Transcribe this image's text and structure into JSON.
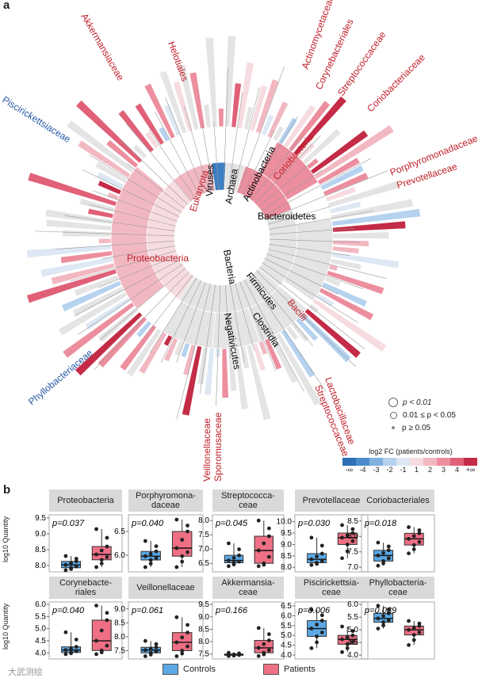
{
  "panel_a": {
    "letter": "a",
    "clade_labels": {
      "viruses": "Viruses",
      "archaea": "Archaea",
      "eukaryota": "Eukaryota",
      "actinobacteria": "Actinobacteria",
      "coriobacteria": "Coriobacteria",
      "bacteroidetes": "Bacteroidetes",
      "proteobacteria": "Proteobacteria",
      "bacteria": "Bacteria",
      "firmicutes": "Firmicutes",
      "negativicutes": "Negativicutes",
      "clostridia": "Clostridia",
      "bacilli": "Bacilli"
    },
    "family_labels": {
      "akkermansiaceae": "Akkermansiaceae",
      "helotiales": "Helotiales",
      "actinomycetaceae": "Actinomycetaceae",
      "corynebacteriales": "Corynebacteriales",
      "streptococcaceae_top": "Streptococcaceae",
      "coriobacteriaceae": "Coriobacteriaceae",
      "porphyromonadaceae": "Porphyromonadaceae",
      "prevotellaceae": "Prevotellaceae",
      "piscirickettsiaceae": "Piscirickettsiaceae",
      "phyllobacteriaceae": "Phyllobacteriaceae",
      "veillonellaceae": "Veillonellaceae",
      "sporomusaceae": "Sporomusaceae",
      "lactobacillaceae": "Lactobacillaceae",
      "streptococcaceae_bottom": "Streptococcaceae"
    },
    "pvalue_legend": [
      "p < 0.01",
      "0.01 ≤ p < 0.05",
      "p ≥ 0.05"
    ],
    "fc_legend": {
      "title": "log2 FC (patients/controls)",
      "ticks": [
        "-∞",
        "-4",
        "-3",
        "-2",
        "-1",
        "1",
        "2",
        "3",
        "4",
        "+∞"
      ],
      "colors": [
        "#2f6eb5",
        "#4d8ccc",
        "#7fb0e0",
        "#b5d2ef",
        "#dde8f4",
        "#f6dce0",
        "#f2b8c2",
        "#ec8e9e",
        "#e06078",
        "#c42b46"
      ]
    }
  },
  "panel_b": {
    "letter": "b",
    "y_axis_label": "log10 Quantity",
    "legend": {
      "controls": "Controls",
      "patients": "Patients",
      "controls_color": "#5aa9e6",
      "patients_color": "#ef6f84"
    },
    "watermark": "大武测绘"
  },
  "chart_data": [
    {
      "type": "box",
      "title": "Proteobacteria",
      "pvalue": "p=0.037",
      "yticks": [
        "8.0",
        "8.5",
        "9.0",
        "9.5"
      ],
      "ylim": [
        7.8,
        9.6
      ],
      "controls": {
        "min": 7.85,
        "q1": 7.93,
        "median": 8.02,
        "q3": 8.13,
        "max": 8.3
      },
      "patients": {
        "min": 7.95,
        "q1": 8.18,
        "median": 8.35,
        "q3": 8.6,
        "max": 9.15
      }
    },
    {
      "type": "box",
      "title": "Porphyromona-\ndaceae",
      "pvalue": "p=0.040",
      "yticks": [
        "6.0",
        "6.5"
      ],
      "ylim": [
        5.65,
        6.85
      ],
      "controls": {
        "min": 5.75,
        "q1": 5.9,
        "median": 5.98,
        "q3": 6.08,
        "max": 6.3
      },
      "patients": {
        "min": 5.75,
        "q1": 5.98,
        "median": 6.15,
        "q3": 6.5,
        "max": 6.75
      }
    },
    {
      "type": "box",
      "title": "Streptococca-\nceae",
      "pvalue": "p=0.045",
      "yticks": [
        "6.5",
        "7.0",
        "7.5",
        "8.0"
      ],
      "ylim": [
        6.2,
        8.2
      ],
      "controls": {
        "min": 6.4,
        "q1": 6.52,
        "median": 6.6,
        "q3": 6.78,
        "max": 7.2
      },
      "patients": {
        "min": 6.4,
        "q1": 6.5,
        "median": 6.95,
        "q3": 7.45,
        "max": 8.0
      }
    },
    {
      "type": "box",
      "title": "Prevotellaceae",
      "pvalue": "p=0.030",
      "yticks": [
        "8.0",
        "8.5",
        "9.0",
        "9.5",
        "10.0"
      ],
      "ylim": [
        7.8,
        10.3
      ],
      "controls": {
        "min": 8.1,
        "q1": 8.2,
        "median": 8.35,
        "q3": 8.6,
        "max": 9.3
      },
      "patients": {
        "min": 8.4,
        "q1": 9.0,
        "median": 9.3,
        "q3": 9.5,
        "max": 9.85
      }
    },
    {
      "type": "box",
      "title": "Coriobacteriales",
      "pvalue": "p=0.018",
      "yticks": [
        "7.0",
        "7.5",
        "8.0",
        "8.5"
      ],
      "ylim": [
        6.85,
        8.7
      ],
      "controls": {
        "min": 7.05,
        "q1": 7.2,
        "median": 7.38,
        "q3": 7.55,
        "max": 7.8
      },
      "patients": {
        "min": 7.45,
        "q1": 7.72,
        "median": 7.92,
        "q3": 8.1,
        "max": 8.3
      }
    },
    {
      "type": "box",
      "title": "Corynebacte-\nriales",
      "pvalue": "p=0.040",
      "yticks": [
        "4.0",
        "4.5",
        "5.0",
        "5.5",
        "6.0"
      ],
      "ylim": [
        3.75,
        6.1
      ],
      "controls": {
        "min": 3.95,
        "q1": 4.02,
        "median": 4.12,
        "q3": 4.25,
        "max": 4.85
      },
      "patients": {
        "min": 3.95,
        "q1": 4.1,
        "median": 4.5,
        "q3": 5.35,
        "max": 5.95
      }
    },
    {
      "type": "box",
      "title": "Veillonellaceae",
      "pvalue": "p=0.061",
      "yticks": [
        "7.5",
        "8.0",
        "8.5",
        "9.0"
      ],
      "ylim": [
        7.2,
        9.25
      ],
      "controls": {
        "min": 7.3,
        "q1": 7.42,
        "median": 7.52,
        "q3": 7.62,
        "max": 7.85
      },
      "patients": {
        "min": 7.3,
        "q1": 7.5,
        "median": 7.8,
        "q3": 8.15,
        "max": 8.7
      }
    },
    {
      "type": "box",
      "title": "Akkermansia-\nceae",
      "pvalue": "p=0.166",
      "yticks": [
        "7.5",
        "8.0",
        "8.5",
        "9.0",
        "9.5"
      ],
      "ylim": [
        7.3,
        9.6
      ],
      "controls": {
        "min": 7.42,
        "q1": 7.45,
        "median": 7.47,
        "q3": 7.5,
        "max": 7.55
      },
      "patients": {
        "min": 7.42,
        "q1": 7.55,
        "median": 7.75,
        "q3": 8.05,
        "max": 8.55
      }
    },
    {
      "type": "box",
      "title": "Piscirickettsia-\nceae",
      "pvalue": "p=0.006",
      "yticks": [
        "4.0",
        "4.5",
        "5.0",
        "5.5",
        "6.0",
        "6.5"
      ],
      "ylim": [
        3.8,
        6.7
      ],
      "controls": {
        "min": 4.35,
        "q1": 4.95,
        "median": 5.35,
        "q3": 5.75,
        "max": 6.3
      },
      "patients": {
        "min": 4.15,
        "q1": 4.55,
        "median": 4.8,
        "q3": 5.0,
        "max": 5.45
      }
    },
    {
      "type": "box",
      "title": "Phyllobacteria-\nceae",
      "pvalue": "p=0.039",
      "yticks": [
        "4.0",
        "4.5",
        "5.0",
        "5.5",
        "6.0"
      ],
      "ylim": [
        3.85,
        6.1
      ],
      "controls": {
        "min": 5.05,
        "q1": 5.3,
        "median": 5.45,
        "q3": 5.65,
        "max": 5.95
      },
      "patients": {
        "min": 4.4,
        "q1": 4.8,
        "median": 5.0,
        "q3": 5.15,
        "max": 5.35
      }
    }
  ]
}
